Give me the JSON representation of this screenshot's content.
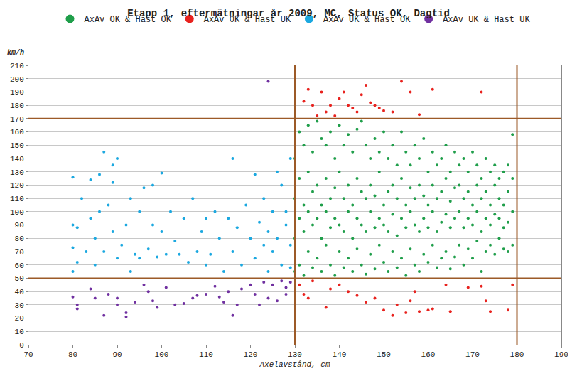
{
  "chart_data": {
    "type": "scatter",
    "title": "Etapp 1, eftermätningar år 2009, MC, Status OK, Dagtid",
    "xlabel": "Axelavstånd, cm",
    "ylabel": "km/h",
    "xlim": [
      70,
      190
    ],
    "xticks": [
      70,
      80,
      90,
      100,
      110,
      120,
      130,
      140,
      150,
      160,
      170,
      180,
      190
    ],
    "ylim": [
      0,
      210
    ],
    "yticks": [
      0,
      10,
      20,
      30,
      40,
      50,
      60,
      70,
      80,
      90,
      100,
      110,
      120,
      130,
      140,
      150,
      160,
      170,
      180,
      190,
      200,
      210
    ],
    "grid": "y",
    "legend": "top",
    "marker": "circle",
    "hlines": [
      50,
      170
    ],
    "vlines": [
      130,
      180
    ],
    "series": [
      {
        "name": "AxAv OK & Hast OK",
        "color": "#1f9e4a",
        "x": [
          130,
          130,
          130,
          130,
          131,
          131,
          131,
          131,
          132,
          132,
          132,
          132,
          133,
          133,
          133,
          133,
          134,
          134,
          134,
          134,
          135,
          135,
          135,
          135,
          136,
          136,
          136,
          136,
          137,
          137,
          137,
          137,
          138,
          138,
          138,
          138,
          139,
          139,
          139,
          139,
          140,
          140,
          140,
          140,
          141,
          141,
          141,
          141,
          142,
          142,
          142,
          142,
          143,
          143,
          143,
          143,
          144,
          144,
          144,
          144,
          145,
          145,
          145,
          145,
          146,
          146,
          146,
          146,
          147,
          147,
          147,
          147,
          148,
          148,
          148,
          148,
          149,
          149,
          149,
          149,
          150,
          150,
          150,
          150,
          151,
          151,
          151,
          151,
          152,
          152,
          152,
          152,
          153,
          153,
          153,
          153,
          154,
          154,
          154,
          154,
          155,
          155,
          155,
          155,
          156,
          156,
          156,
          156,
          157,
          157,
          157,
          157,
          158,
          158,
          158,
          158,
          159,
          159,
          159,
          159,
          160,
          160,
          160,
          160,
          161,
          161,
          161,
          161,
          162,
          162,
          162,
          162,
          163,
          163,
          163,
          163,
          164,
          164,
          164,
          164,
          165,
          165,
          165,
          165,
          166,
          166,
          166,
          166,
          167,
          167,
          167,
          167,
          168,
          168,
          168,
          168,
          169,
          169,
          169,
          169,
          170,
          170,
          170,
          170,
          171,
          171,
          171,
          171,
          172,
          172,
          172,
          172,
          173,
          173,
          173,
          173,
          174,
          174,
          174,
          174,
          175,
          175,
          175,
          175,
          176,
          176,
          176,
          176,
          177,
          177,
          177,
          177,
          178,
          178,
          178,
          178,
          179,
          179,
          179,
          179
        ],
        "values": [
          55,
          80,
          110,
          140,
          60,
          95,
          125,
          160,
          52,
          85,
          105,
          150,
          70,
          100,
          130,
          165,
          58,
          90,
          115,
          145,
          65,
          95,
          120,
          168,
          55,
          80,
          105,
          155,
          75,
          100,
          125,
          150,
          60,
          88,
          110,
          160,
          52,
          95,
          118,
          140,
          70,
          90,
          130,
          165,
          58,
          85,
          110,
          150,
          65,
          100,
          120,
          158,
          55,
          80,
          105,
          145,
          72,
          95,
          125,
          162,
          60,
          90,
          115,
          168,
          53,
          85,
          110,
          150,
          68,
          100,
          120,
          140,
          57,
          88,
          112,
          155,
          75,
          95,
          130,
          145,
          62,
          90,
          105,
          160,
          55,
          85,
          115,
          140,
          70,
          98,
          120,
          150,
          58,
          82,
          110,
          135,
          65,
          95,
          125,
          160,
          52,
          88,
          105,
          145,
          72,
          100,
          118,
          135,
          60,
          90,
          110,
          150,
          55,
          85,
          120,
          140,
          68,
          95,
          112,
          155,
          62,
          88,
          105,
          130,
          75,
          100,
          120,
          145,
          58,
          85,
          110,
          135,
          65,
          92,
          115,
          140,
          70,
          98,
          125,
          150,
          57,
          88,
          108,
          130,
          66,
          95,
          118,
          145,
          75,
          100,
          120,
          135,
          60,
          88,
          110,
          140,
          72,
          95,
          115,
          130,
          65,
          90,
          105,
          145,
          78,
          100,
          120,
          135,
          55,
          85,
          110,
          125,
          70,
          95,
          115,
          140,
          75,
          90,
          105,
          130,
          68,
          98,
          120,
          135,
          80,
          95,
          110,
          125,
          72,
          88,
          105,
          130,
          70,
          92,
          115,
          135,
          75,
          100,
          125,
          158
        ]
      },
      {
        "name": "AxAv OK & Hast UK",
        "color": "#e8221e",
        "x": [
          132,
          133,
          134,
          135,
          136,
          137,
          138,
          139,
          140,
          141,
          142,
          143,
          144,
          145,
          146,
          147,
          148,
          149,
          150,
          152,
          154,
          156,
          158,
          161,
          172,
          131,
          132,
          133,
          134,
          137,
          138,
          140,
          142,
          144,
          146,
          148,
          150,
          152,
          153,
          155,
          156,
          157,
          158,
          160,
          161,
          164,
          165,
          169,
          172,
          173,
          174,
          178,
          179
        ],
        "values": [
          183,
          192,
          180,
          172,
          190,
          175,
          180,
          172,
          185,
          190,
          180,
          178,
          175,
          188,
          195,
          182,
          180,
          178,
          176,
          175,
          198,
          190,
          173,
          192,
          190,
          45,
          38,
          35,
          48,
          28,
          42,
          45,
          40,
          37,
          32,
          35,
          26,
          22,
          30,
          24,
          33,
          40,
          25,
          26,
          27,
          45,
          25,
          43,
          44,
          33,
          25,
          26,
          45
        ]
      },
      {
        "name": "AxAv UK & Hast OK",
        "color": "#1ba8e0",
        "x": [
          80,
          80,
          80,
          80,
          81,
          81,
          82,
          83,
          84,
          84,
          85,
          85,
          86,
          86,
          87,
          87,
          88,
          89,
          89,
          89,
          90,
          90,
          91,
          92,
          93,
          93,
          94,
          95,
          95,
          96,
          97,
          98,
          98,
          99,
          100,
          100,
          101,
          102,
          103,
          104,
          105,
          106,
          107,
          108,
          109,
          110,
          110,
          111,
          112,
          113,
          114,
          115,
          116,
          116,
          117,
          118,
          119,
          120,
          121,
          121,
          122,
          123,
          123,
          124,
          124,
          125,
          125,
          126,
          126,
          127,
          127,
          128,
          128,
          129,
          129,
          129
        ],
        "values": [
          126,
          90,
          73,
          55,
          88,
          62,
          110,
          70,
          124,
          95,
          80,
          60,
          100,
          128,
          145,
          70,
          105,
          135,
          122,
          85,
          140,
          65,
          75,
          90,
          110,
          55,
          68,
          100,
          65,
          118,
          72,
          90,
          120,
          66,
          129,
          85,
          68,
          100,
          78,
          68,
          95,
          62,
          110,
          70,
          85,
          95,
          60,
          68,
          100,
          80,
          55,
          95,
          140,
          70,
          88,
          60,
          105,
          80,
          128,
          65,
          92,
          110,
          75,
          85,
          55,
          100,
          70,
          80,
          130,
          60,
          120,
          100,
          90,
          140,
          75,
          58
        ]
      },
      {
        "name": "AxAv UK & Hast UK",
        "color": "#7030a0",
        "x": [
          80,
          81,
          81,
          84,
          85,
          87,
          88,
          90,
          90,
          92,
          92,
          94,
          96,
          97,
          98,
          99,
          101,
          103,
          105,
          107,
          108,
          110,
          112,
          113,
          114,
          115,
          116,
          117,
          118,
          120,
          121,
          122,
          123,
          124,
          124,
          125,
          126,
          127,
          128,
          128,
          129
        ],
        "values": [
          36,
          30,
          27,
          42,
          35,
          22,
          38,
          30,
          35,
          24,
          21,
          32,
          45,
          40,
          33,
          28,
          43,
          30,
          31,
          35,
          37,
          38,
          44,
          36,
          32,
          40,
          22,
          30,
          42,
          45,
          38,
          30,
          47,
          198,
          35,
          45,
          33,
          48,
          43,
          38,
          47
        ]
      }
    ]
  }
}
